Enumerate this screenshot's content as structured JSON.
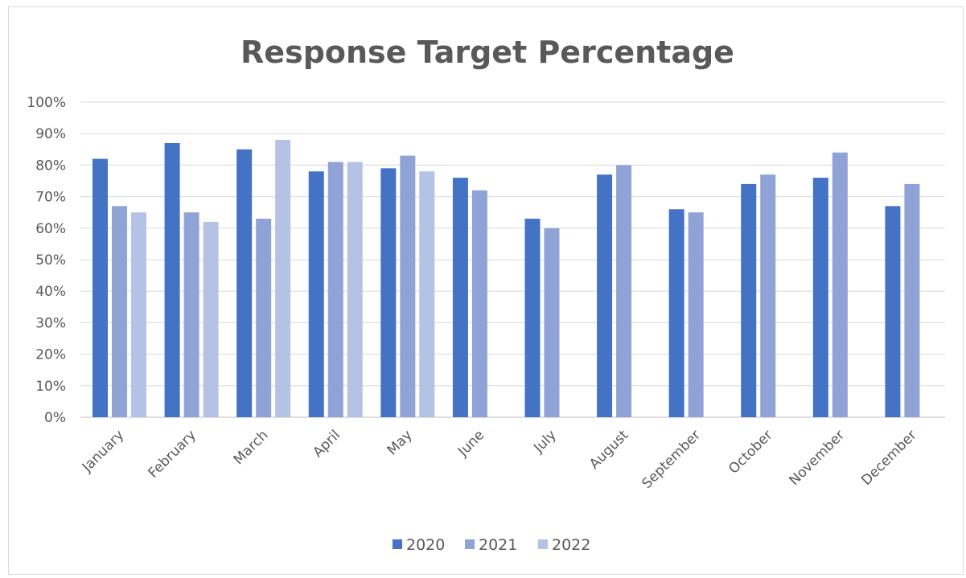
{
  "chart_data": {
    "type": "bar",
    "title": "Response Target Percentage",
    "xlabel": "",
    "ylabel": "",
    "ylim": [
      0,
      100
    ],
    "y_ticks": [
      "0%",
      "10%",
      "20%",
      "30%",
      "40%",
      "50%",
      "60%",
      "70%",
      "80%",
      "90%",
      "100%"
    ],
    "y_tick_values": [
      0,
      10,
      20,
      30,
      40,
      50,
      60,
      70,
      80,
      90,
      100
    ],
    "grid": true,
    "legend_position": "bottom",
    "categories": [
      "January",
      "February",
      "March",
      "April",
      "May",
      "June",
      "July",
      "August",
      "September",
      "October",
      "November",
      "December"
    ],
    "series": [
      {
        "name": "2020",
        "color": "#4472c4",
        "values": [
          82,
          87,
          85,
          78,
          79,
          76,
          63,
          77,
          66,
          74,
          76,
          67
        ]
      },
      {
        "name": "2021",
        "color": "#8fa3d6",
        "values": [
          67,
          65,
          63,
          81,
          83,
          72,
          60,
          80,
          65,
          77,
          84,
          74
        ]
      },
      {
        "name": "2022",
        "color": "#b4c2e5",
        "values": [
          65,
          62,
          88,
          81,
          78,
          null,
          null,
          null,
          null,
          null,
          null,
          null
        ]
      }
    ]
  }
}
